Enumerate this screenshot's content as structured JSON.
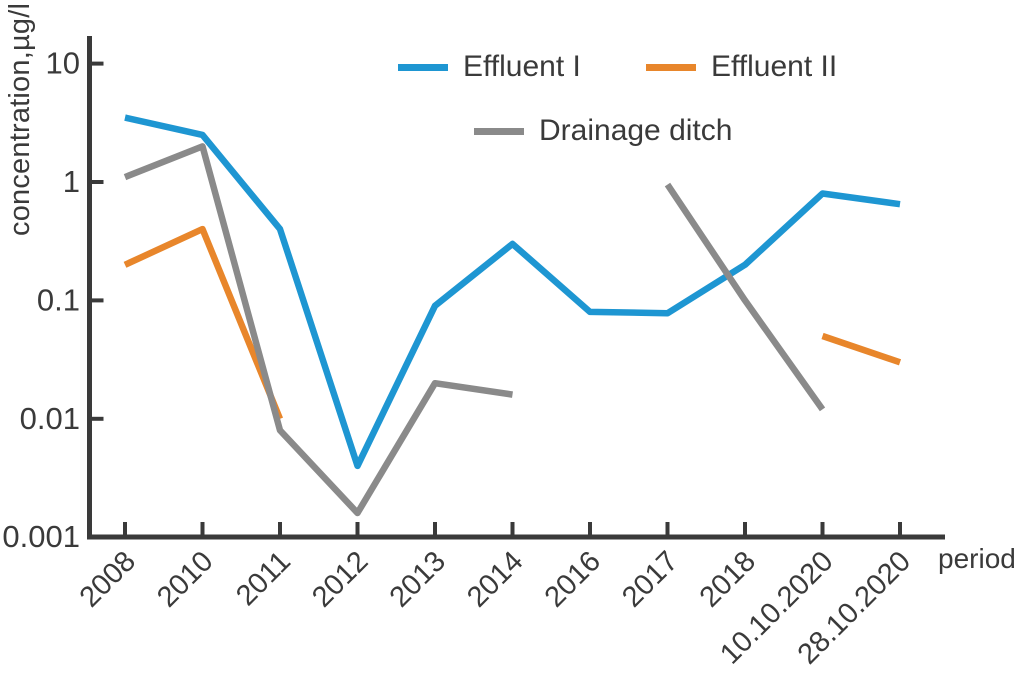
{
  "axes": {
    "y_axis_title": "concentration,µg/l",
    "x_axis_title": "period",
    "y_tick_labels": [
      "10",
      "1",
      "0.1",
      "0.01",
      "0.001"
    ],
    "x_tick_labels": [
      "2008",
      "2010",
      "2011",
      "2012",
      "2013",
      "2014",
      "2016",
      "2017",
      "2018",
      "10.10.2020",
      "28.10.2020"
    ]
  },
  "legend": {
    "items": [
      {
        "label": "Effluent I",
        "color": "#1e96d2"
      },
      {
        "label": "Effluent II",
        "color": "#e8862b"
      },
      {
        "label": "Drainage ditch",
        "color": "#8a8a8a"
      }
    ]
  },
  "chart_data": {
    "type": "line",
    "title": "",
    "xlabel": "period",
    "ylabel": "concentration,µg/l",
    "x_scale": "category",
    "y_scale": "log",
    "ylim": [
      0.001,
      10
    ],
    "y_ticks": [
      10,
      1,
      0.1,
      0.01,
      0.001
    ],
    "grid": false,
    "legend_position": "top-center-inside",
    "categories": [
      "2008",
      "2010",
      "2011",
      "2012",
      "2013",
      "2014",
      "2016",
      "2017",
      "2018",
      "10.10.2020",
      "28.10.2020"
    ],
    "series": [
      {
        "name": "Effluent I",
        "color": "#1e96d2",
        "values": [
          3.5,
          2.5,
          0.4,
          0.004,
          0.09,
          0.3,
          0.08,
          0.078,
          0.2,
          0.8,
          0.65
        ]
      },
      {
        "name": "Effluent II",
        "color": "#e8862b",
        "values": [
          0.2,
          0.4,
          0.01,
          null,
          null,
          null,
          null,
          null,
          null,
          0.05,
          0.03
        ]
      },
      {
        "name": "Drainage ditch",
        "color": "#8a8a8a",
        "values": [
          1.1,
          2.0,
          0.008,
          0.0016,
          0.02,
          0.016,
          null,
          0.95,
          0.1,
          0.012,
          null
        ]
      }
    ]
  },
  "style": {
    "axis_color": "#3a3a3a",
    "background": "#ffffff"
  }
}
